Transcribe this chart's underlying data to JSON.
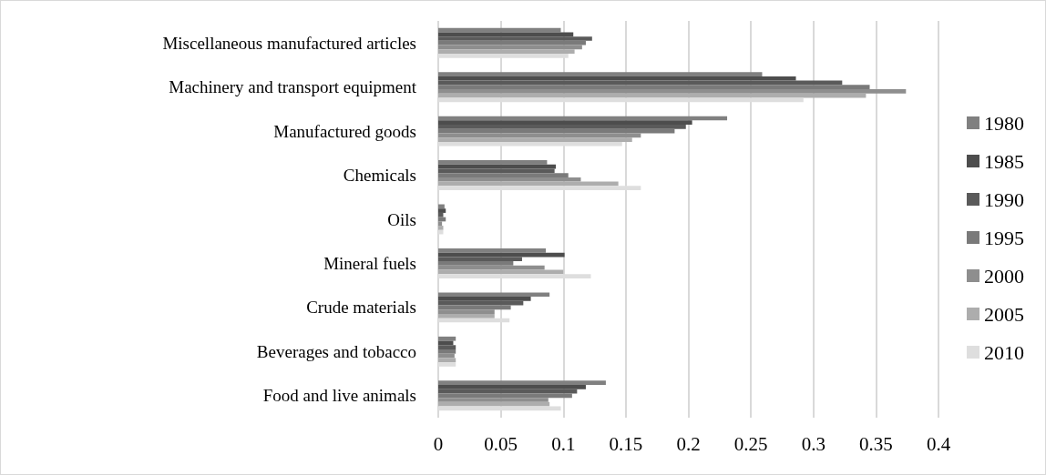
{
  "chart_data": {
    "type": "bar",
    "orientation": "horizontal",
    "categories": [
      "Miscellaneous manufactured articles",
      "Machinery and transport equipment",
      "Manufactured goods",
      "Chemicals",
      "Oils",
      "Mineral fuels",
      "Crude materials",
      "Beverages and tobacco",
      "Food and live animals"
    ],
    "series": [
      {
        "name": "1980",
        "color": "#808080",
        "values": [
          0.098,
          0.259,
          0.231,
          0.087,
          0.005,
          0.086,
          0.089,
          0.014,
          0.134
        ]
      },
      {
        "name": "1985",
        "color": "#4d4d4d",
        "values": [
          0.108,
          0.286,
          0.203,
          0.094,
          0.006,
          0.101,
          0.074,
          0.012,
          0.118
        ]
      },
      {
        "name": "1990",
        "color": "#5a5a5a",
        "values": [
          0.123,
          0.323,
          0.198,
          0.093,
          0.004,
          0.067,
          0.068,
          0.014,
          0.111
        ]
      },
      {
        "name": "1995",
        "color": "#7a7a7a",
        "values": [
          0.118,
          0.345,
          0.189,
          0.104,
          0.006,
          0.06,
          0.058,
          0.014,
          0.107
        ]
      },
      {
        "name": "2000",
        "color": "#8e8e8e",
        "values": [
          0.115,
          0.374,
          0.162,
          0.114,
          0.003,
          0.085,
          0.045,
          0.013,
          0.088
        ]
      },
      {
        "name": "2005",
        "color": "#adadad",
        "values": [
          0.109,
          0.342,
          0.155,
          0.144,
          0.004,
          0.1,
          0.045,
          0.014,
          0.089
        ]
      },
      {
        "name": "2010",
        "color": "#dedede",
        "values": [
          0.104,
          0.292,
          0.147,
          0.162,
          0.004,
          0.122,
          0.057,
          0.014,
          0.098
        ]
      }
    ],
    "xlim": [
      0,
      0.4
    ],
    "xticks": [
      0,
      0.05,
      0.1,
      0.15,
      0.2,
      0.25,
      0.3,
      0.35,
      0.4
    ],
    "grid": "x",
    "legend": "right"
  }
}
